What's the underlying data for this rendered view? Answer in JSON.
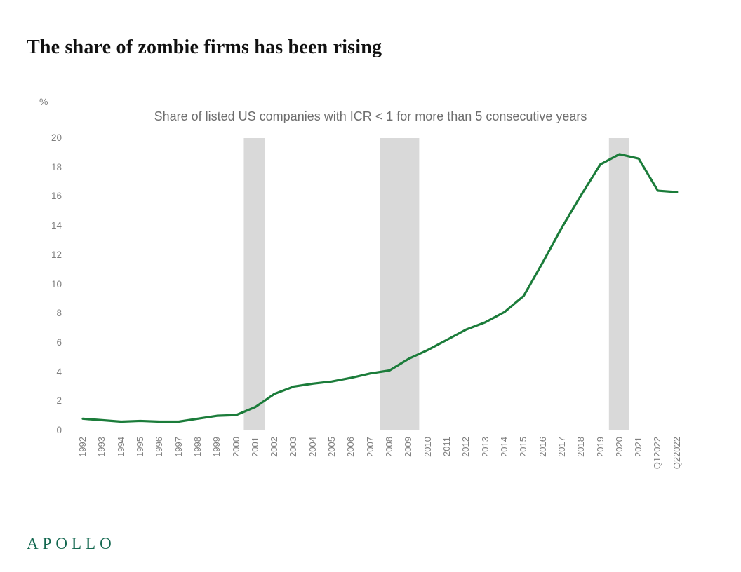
{
  "header": {
    "title": "The share of zombie firms has been rising"
  },
  "chart": {
    "unit_label": "%",
    "subtitle": "Share of listed US companies with ICR < 1 for more than 5 consecutive years"
  },
  "chart_data": {
    "type": "line",
    "title": "Share of listed US companies with ICR < 1 for more than 5 consecutive years",
    "ylabel": "%",
    "xlabel": "",
    "ylim": [
      0,
      20
    ],
    "yticks": [
      0,
      2,
      4,
      6,
      8,
      10,
      12,
      14,
      16,
      18,
      20
    ],
    "grid": false,
    "legend_position": "none",
    "categories": [
      "1992",
      "1993",
      "1994",
      "1995",
      "1996",
      "1997",
      "1998",
      "1999",
      "2000",
      "2001",
      "2002",
      "2003",
      "2004",
      "2005",
      "2006",
      "2007",
      "2008",
      "2009",
      "2010",
      "2011",
      "2012",
      "2013",
      "2014",
      "2015",
      "2016",
      "2017",
      "2018",
      "2019",
      "2020",
      "2021",
      "Q12022",
      "Q22022"
    ],
    "series": [
      {
        "name": "Share of zombie firms",
        "color": "#1b7c3a",
        "values": [
          0.8,
          0.7,
          0.6,
          0.65,
          0.6,
          0.6,
          0.8,
          1.0,
          1.05,
          1.6,
          2.5,
          3.0,
          3.2,
          3.35,
          3.6,
          3.9,
          4.1,
          4.9,
          5.5,
          6.2,
          6.9,
          7.4,
          8.1,
          9.2,
          11.5,
          13.9,
          16.1,
          18.2,
          18.9,
          18.6,
          16.4,
          16.3
        ]
      }
    ],
    "recession_bands": [
      {
        "from_index": 8.4,
        "to_index": 9.5
      },
      {
        "from_index": 15.5,
        "to_index": 17.55
      },
      {
        "from_index": 27.45,
        "to_index": 28.5
      }
    ],
    "band_color": "#d9d9d9",
    "axis_line_color": "#c9c9c9"
  },
  "footer": {
    "brand": "APOLLO"
  }
}
